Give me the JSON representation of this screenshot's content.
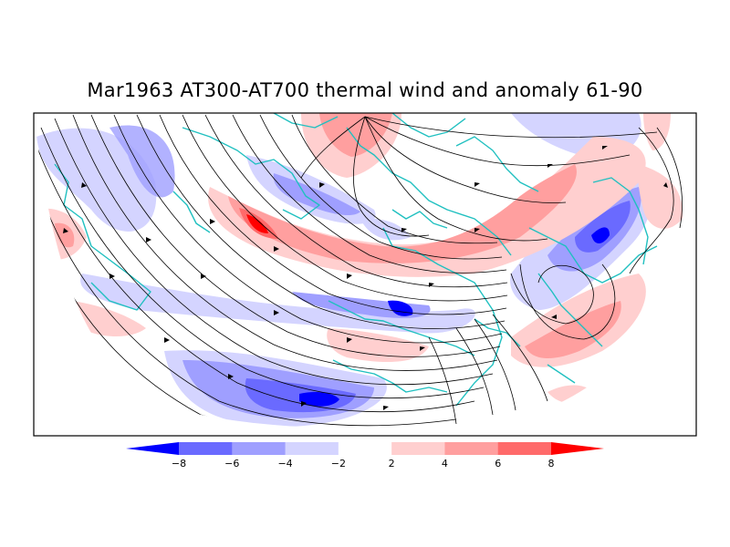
{
  "title": "Mar1963 AT300-AT700 thermal wind and anomaly 61-90",
  "colorbar": {
    "levels": [
      "-8",
      "-6",
      "-4",
      "-2",
      "2",
      "4",
      "6",
      "8"
    ],
    "colors": [
      "#0000ff",
      "#6a6aff",
      "#9f9fff",
      "#d4d4ff",
      "#ffffff",
      "#ffcfcf",
      "#ff9f9f",
      "#ff6a6a",
      "#ff0000"
    ]
  },
  "palette": {
    "coastline": "#20c0c0",
    "streamline": "#000000",
    "frame": "#000000"
  }
}
